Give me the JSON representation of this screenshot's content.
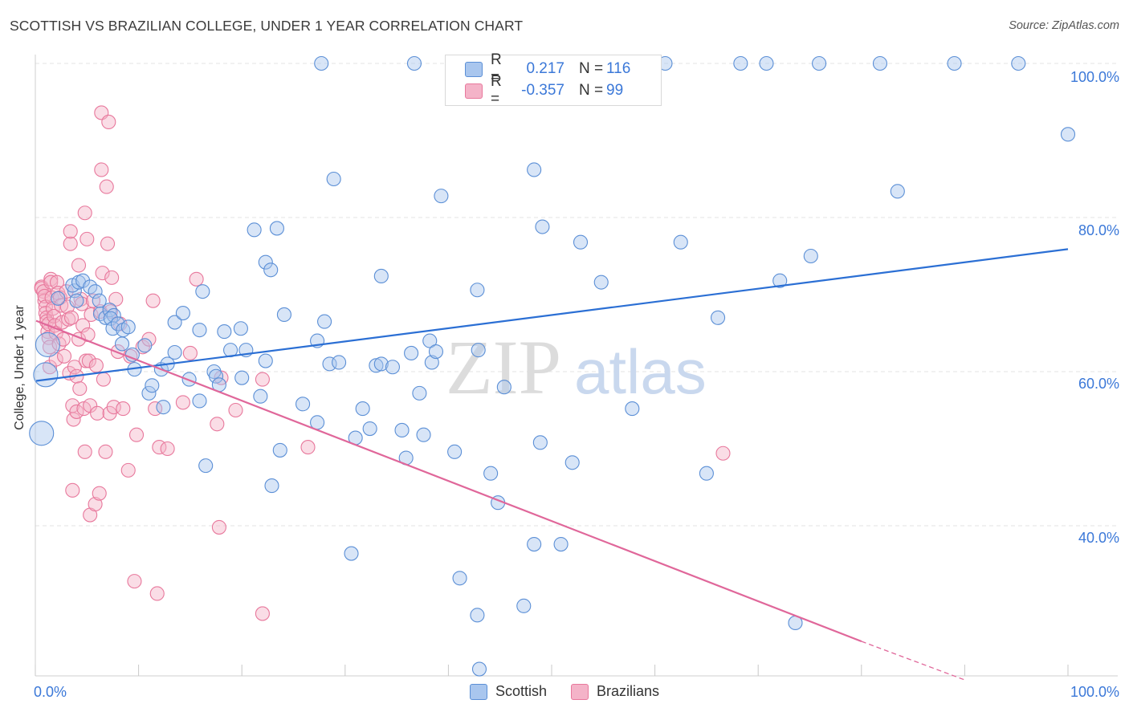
{
  "title": "SCOTTISH VS BRAZILIAN COLLEGE, UNDER 1 YEAR CORRELATION CHART",
  "source": "Source: ZipAtlas.com",
  "colors": {
    "scottish_fill": "#a9c6ee",
    "scottish_stroke": "#5b8fd6",
    "scottish_line": "#2b6fd4",
    "brazilian_fill": "#f4b3c8",
    "brazilian_stroke": "#e8789c",
    "brazilian_line": "#e0679a",
    "axis_text": "#3b78d8"
  },
  "legend": {
    "rows": [
      {
        "key": "R =",
        "r": "0.217",
        "nkey": "N =",
        "n": "116",
        "series": "scottish"
      },
      {
        "key": "R =",
        "r": "-0.357",
        "nkey": "N =",
        "n": "99",
        "series": "brazilian"
      }
    ]
  },
  "bottom_legend": [
    "Scottish",
    "Brazilians"
  ],
  "watermark": {
    "zip": "ZIP",
    "atlas": "atlas"
  },
  "chart_data": {
    "type": "scatter",
    "title": "SCOTTISH VS BRAZILIAN COLLEGE, UNDER 1 YEAR CORRELATION CHART",
    "xlabel": "",
    "ylabel": "College, Under 1 year",
    "xlim": [
      0,
      100
    ],
    "ylim": [
      20,
      102
    ],
    "x_tick_labels": [
      "0.0%",
      "100.0%"
    ],
    "y_ticks": [
      40,
      60,
      80,
      100
    ],
    "y_tick_labels": [
      "40.0%",
      "60.0%",
      "80.0%",
      "100.0%"
    ],
    "grid": true,
    "series": [
      {
        "name": "Scottish",
        "R": 0.217,
        "N": 116,
        "trend": {
          "x": [
            0,
            100
          ],
          "y": [
            58.8,
            75.9
          ]
        },
        "points": [
          [
            1.0,
            59.6
          ],
          [
            0.6,
            52.0
          ],
          [
            3.8,
            70.5
          ],
          [
            4.0,
            69.2
          ],
          [
            3.6,
            71.2
          ],
          [
            4.2,
            71.6
          ],
          [
            4.6,
            71.8
          ],
          [
            5.3,
            71.0
          ],
          [
            5.8,
            70.4
          ],
          [
            6.2,
            69.2
          ],
          [
            6.3,
            67.5
          ],
          [
            6.8,
            67.0
          ],
          [
            7.2,
            68.0
          ],
          [
            7.6,
            67.3
          ],
          [
            7.3,
            66.9
          ],
          [
            7.5,
            65.6
          ],
          [
            8.0,
            66.2
          ],
          [
            8.5,
            65.4
          ],
          [
            8.4,
            63.6
          ],
          [
            9.0,
            65.8
          ],
          [
            9.4,
            62.2
          ],
          [
            9.6,
            60.3
          ],
          [
            10.6,
            63.4
          ],
          [
            11.0,
            57.2
          ],
          [
            11.3,
            58.2
          ],
          [
            12.2,
            60.3
          ],
          [
            12.4,
            55.4
          ],
          [
            12.8,
            61.0
          ],
          [
            13.5,
            62.5
          ],
          [
            13.5,
            66.4
          ],
          [
            14.3,
            67.6
          ],
          [
            14.9,
            59.0
          ],
          [
            15.9,
            56.2
          ],
          [
            15.9,
            65.4
          ],
          [
            16.5,
            47.8
          ],
          [
            16.2,
            70.4
          ],
          [
            17.3,
            60.0
          ],
          [
            17.5,
            59.4
          ],
          [
            17.8,
            58.3
          ],
          [
            18.3,
            65.2
          ],
          [
            18.9,
            62.8
          ],
          [
            19.9,
            65.6
          ],
          [
            20.4,
            62.8
          ],
          [
            21.2,
            78.4
          ],
          [
            21.8,
            56.8
          ],
          [
            22.3,
            61.4
          ],
          [
            22.3,
            74.2
          ],
          [
            22.8,
            73.2
          ],
          [
            22.9,
            45.2
          ],
          [
            23.4,
            78.6
          ],
          [
            23.7,
            49.8
          ],
          [
            24.1,
            67.4
          ],
          [
            25.9,
            55.8
          ],
          [
            27.3,
            64.0
          ],
          [
            27.3,
            53.4
          ],
          [
            28.0,
            66.5
          ],
          [
            28.5,
            61.0
          ],
          [
            28.9,
            85.0
          ],
          [
            29.4,
            61.2
          ],
          [
            30.6,
            36.4
          ],
          [
            31.0,
            51.4
          ],
          [
            31.7,
            55.2
          ],
          [
            32.4,
            52.6
          ],
          [
            33.0,
            60.8
          ],
          [
            33.5,
            61.0
          ],
          [
            33.5,
            72.4
          ],
          [
            34.6,
            60.6
          ],
          [
            35.5,
            52.4
          ],
          [
            35.9,
            48.8
          ],
          [
            36.4,
            62.4
          ],
          [
            37.2,
            57.2
          ],
          [
            37.6,
            51.8
          ],
          [
            38.2,
            64.0
          ],
          [
            38.4,
            61.2
          ],
          [
            38.8,
            62.6
          ],
          [
            39.3,
            82.8
          ],
          [
            40.6,
            49.6
          ],
          [
            41.1,
            33.2
          ],
          [
            42.8,
            28.4
          ],
          [
            42.8,
            70.6
          ],
          [
            42.9,
            62.8
          ],
          [
            43.0,
            21.4
          ],
          [
            44.1,
            46.8
          ],
          [
            44.8,
            43.0
          ],
          [
            45.4,
            58.0
          ],
          [
            47.3,
            29.6
          ],
          [
            48.3,
            37.6
          ],
          [
            48.3,
            86.2
          ],
          [
            48.9,
            50.8
          ],
          [
            49.1,
            78.8
          ],
          [
            50.9,
            37.6
          ],
          [
            52.0,
            48.2
          ],
          [
            52.8,
            76.8
          ],
          [
            54.8,
            71.6
          ],
          [
            57.8,
            55.2
          ],
          [
            62.5,
            76.8
          ],
          [
            65.0,
            46.8
          ],
          [
            66.1,
            67.0
          ],
          [
            72.1,
            71.8
          ],
          [
            73.6,
            27.4
          ],
          [
            75.1,
            75.0
          ],
          [
            83.5,
            83.4
          ],
          [
            100.0,
            90.8
          ],
          [
            27.7,
            100.0
          ],
          [
            36.7,
            100.0
          ],
          [
            47.2,
            100.0
          ],
          [
            61.0,
            100.0
          ],
          [
            68.3,
            100.0
          ],
          [
            70.8,
            100.0
          ],
          [
            75.9,
            100.0
          ],
          [
            81.8,
            100.0
          ],
          [
            89.0,
            100.0
          ],
          [
            95.2,
            100.0
          ],
          [
            1.2,
            63.5
          ],
          [
            2.2,
            69.5
          ],
          [
            20.0,
            59.2
          ]
        ],
        "large_points": [
          [
            1.0,
            59.6
          ],
          [
            0.6,
            52.0
          ],
          [
            1.2,
            63.5
          ]
        ]
      },
      {
        "name": "Brazilians",
        "R": -0.357,
        "N": 99,
        "trend": {
          "x": [
            0,
            80
          ],
          "y": [
            66.6,
            25.0
          ]
        },
        "trend_dashed": {
          "x": [
            80,
            90
          ],
          "y": [
            25.0,
            20.0
          ]
        },
        "points": [
          [
            0.6,
            71.0
          ],
          [
            0.6,
            70.8
          ],
          [
            0.8,
            70.4
          ],
          [
            0.9,
            69.2
          ],
          [
            0.9,
            69.8
          ],
          [
            1.0,
            68.4
          ],
          [
            1.0,
            67.6
          ],
          [
            1.1,
            67.0
          ],
          [
            1.1,
            66.5
          ],
          [
            1.2,
            65.2
          ],
          [
            1.3,
            64.4
          ],
          [
            1.3,
            66.2
          ],
          [
            1.4,
            63.2
          ],
          [
            1.4,
            60.6
          ],
          [
            1.5,
            72.0
          ],
          [
            1.5,
            71.6
          ],
          [
            1.6,
            69.6
          ],
          [
            1.7,
            68.2
          ],
          [
            1.8,
            67.2
          ],
          [
            1.9,
            66.0
          ],
          [
            2.0,
            65.0
          ],
          [
            2.0,
            61.6
          ],
          [
            2.1,
            71.6
          ],
          [
            2.2,
            70.2
          ],
          [
            2.3,
            63.6
          ],
          [
            2.4,
            69.6
          ],
          [
            2.5,
            68.6
          ],
          [
            2.6,
            66.4
          ],
          [
            2.7,
            64.2
          ],
          [
            2.8,
            62.0
          ],
          [
            3.0,
            70.4
          ],
          [
            3.1,
            68.4
          ],
          [
            3.2,
            66.8
          ],
          [
            3.3,
            59.8
          ],
          [
            3.4,
            76.6
          ],
          [
            3.4,
            78.2
          ],
          [
            3.5,
            67.0
          ],
          [
            3.6,
            55.6
          ],
          [
            3.6,
            44.6
          ],
          [
            3.7,
            53.8
          ],
          [
            3.8,
            60.6
          ],
          [
            4.0,
            54.8
          ],
          [
            4.0,
            59.4
          ],
          [
            4.2,
            73.8
          ],
          [
            4.2,
            64.2
          ],
          [
            4.3,
            57.8
          ],
          [
            4.4,
            69.4
          ],
          [
            4.5,
            68.8
          ],
          [
            4.6,
            66.0
          ],
          [
            4.7,
            55.2
          ],
          [
            4.8,
            80.6
          ],
          [
            4.8,
            49.6
          ],
          [
            4.9,
            61.4
          ],
          [
            5.0,
            77.2
          ],
          [
            5.1,
            64.8
          ],
          [
            5.2,
            61.4
          ],
          [
            5.3,
            55.6
          ],
          [
            5.3,
            41.4
          ],
          [
            5.4,
            67.4
          ],
          [
            5.6,
            69.2
          ],
          [
            5.8,
            42.8
          ],
          [
            5.9,
            60.8
          ],
          [
            6.0,
            54.6
          ],
          [
            6.2,
            44.2
          ],
          [
            6.3,
            67.8
          ],
          [
            6.4,
            86.2
          ],
          [
            6.4,
            93.6
          ],
          [
            6.5,
            72.8
          ],
          [
            6.6,
            59.0
          ],
          [
            6.8,
            49.6
          ],
          [
            6.9,
            84.0
          ],
          [
            7.0,
            76.6
          ],
          [
            7.1,
            92.4
          ],
          [
            7.2,
            54.6
          ],
          [
            7.3,
            67.8
          ],
          [
            7.4,
            72.2
          ],
          [
            7.6,
            55.4
          ],
          [
            7.8,
            69.4
          ],
          [
            8.0,
            62.6
          ],
          [
            8.2,
            66.2
          ],
          [
            8.5,
            55.2
          ],
          [
            9.0,
            47.2
          ],
          [
            9.2,
            62.0
          ],
          [
            9.6,
            32.8
          ],
          [
            9.8,
            51.8
          ],
          [
            10.4,
            63.2
          ],
          [
            11.0,
            64.2
          ],
          [
            11.4,
            69.2
          ],
          [
            11.6,
            55.2
          ],
          [
            11.8,
            31.2
          ],
          [
            12.0,
            50.2
          ],
          [
            12.8,
            50.0
          ],
          [
            14.3,
            56.0
          ],
          [
            15.0,
            62.4
          ],
          [
            15.6,
            72.0
          ],
          [
            17.6,
            53.2
          ],
          [
            17.8,
            39.8
          ],
          [
            18.0,
            59.2
          ],
          [
            19.4,
            55.0
          ]
        ],
        "extra_points": [
          [
            26.4,
            50.2
          ],
          [
            22.0,
            28.6
          ],
          [
            66.6,
            49.4
          ],
          [
            22.0,
            59.0
          ]
        ]
      }
    ]
  }
}
